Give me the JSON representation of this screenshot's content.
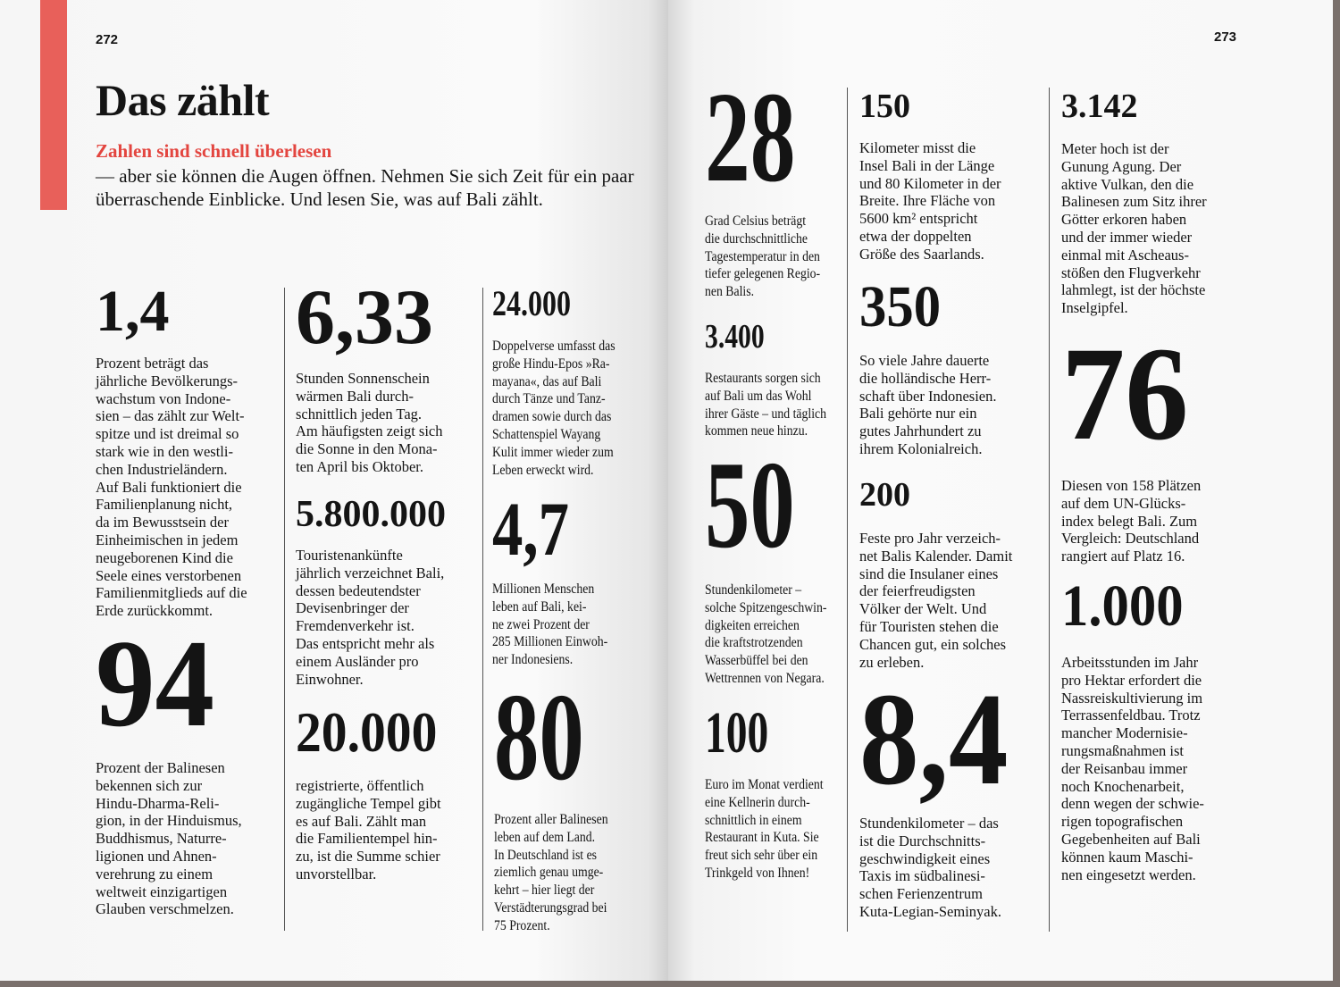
{
  "left_page": {
    "page_number": "272",
    "title": "Das zählt",
    "intro_highlight": "Zahlen sind schnell überlesen",
    "intro_rest": " — aber sie können die Augen öffnen. Nehmen Sie sich Zeit für ein paar überraschende Einblicke. Und lesen Sie, was auf Bali zählt.",
    "blocks": [
      {
        "number": "1,4",
        "text": "Prozent beträgt das\njährliche Bevölkerungs-\nwachstum von Indone-\nsien – das zählt zur Welt-\nspitze und ist dreimal so\nstark wie in den westli-\nchen Industrieländern.\nAuf Bali funktioniert die\nFamilienplanung nicht,\nda im Bewusstsein der\nEinheimischen in jedem\nneugeborenen Kind die\nSeele eines verstorbenen\nFamilienmitglieds auf die\nErde zurückkommt."
      },
      {
        "number": "94",
        "text": "Prozent der Balinesen\nbekennen sich zur\nHindu-Dharma-Reli-\ngion, in der Hinduismus,\nBuddhismus, Naturre-\nligionen und Ahnen-\nverehrung zu einem\nweltweit einzigartigen\nGlauben verschmelzen."
      },
      {
        "number": "6,33",
        "text": "Stunden Sonnenschein\nwärmen Bali durch-\nschnittlich jeden Tag.\nAm häufigsten zeigt sich\ndie Sonne in den Mona-\nten April bis Oktober."
      },
      {
        "number": "5.800.000",
        "text": "Touristenankünfte\njährlich verzeichnet Bali,\ndessen bedeutendster\nDevisenbringer der\nFremdenverkehr ist.\nDas entspricht mehr als\neinem Ausländer pro\nEinwohner."
      },
      {
        "number": "20.000",
        "text": "registrierte, öffentlich\nzugängliche Tempel gibt\nes auf Bali. Zählt man\ndie Familientempel hin-\nzu, ist die Summe schier\nunvorstellbar."
      },
      {
        "number": "24.000",
        "text": "Doppelverse umfasst das\ngroße Hindu-Epos »Ra-\nmayana«, das auf Bali\ndurch Tänze und Tanz-\ndramen sowie durch das\nSchattenspiel Wayang\nKulit immer wieder zum\nLeben erweckt wird."
      },
      {
        "number": "4,7",
        "text": "Millionen Menschen\nleben auf Bali, kei-\nne zwei Prozent der\n285 Millionen Einwoh-\nner Indonesiens."
      },
      {
        "number": "80",
        "text": "Prozent aller Balinesen\nleben auf dem Land.\nIn Deutschland ist es\nziemlich genau umge-\nkehrt – hier liegt der\nVerstädterungsgrad bei\n75 Prozent."
      }
    ]
  },
  "right_page": {
    "page_number": "273",
    "blocks": [
      {
        "number": "28",
        "text": "Grad Celsius beträgt\ndie durchschnittliche\nTagestemperatur in den\ntiefer gelegenen Regio-\nnen Balis."
      },
      {
        "number": "3.400",
        "text": "Restaurants sorgen sich\nauf Bali um das Wohl\nihrer Gäste – und täglich\nkommen neue hinzu."
      },
      {
        "number": "50",
        "text": "Stundenkilometer –\nsolche Spitzengeschwin-\ndigkeiten erreichen\ndie kraftstrotzenden\nWasserbüffel bei den\nWettrennen von Negara."
      },
      {
        "number": "100",
        "text": "Euro im Monat verdient\neine Kellnerin durch-\nschnittlich in einem\nRestaurant in Kuta. Sie\nfreut sich sehr über ein\nTrinkgeld von Ihnen!"
      },
      {
        "number": "150",
        "text": "Kilometer misst die\nInsel Bali in der Länge\nund 80 Kilometer in der\nBreite. Ihre Fläche von\n5600 km² entspricht\netwa der doppelten\nGröße des Saarlands."
      },
      {
        "number": "350",
        "text": "So viele Jahre dauerte\ndie holländische Herr-\nschaft über Indonesien.\nBali gehörte nur ein\ngutes Jahrhundert zu\nihrem Kolonialreich."
      },
      {
        "number": "200",
        "text": "Feste pro Jahr verzeich-\nnet Balis Kalender. Damit\nsind die Insulaner eines\nder feierfreudigsten\nVölker der Welt. Und\nfür Touristen stehen die\nChancen gut, ein solches\nzu erleben."
      },
      {
        "number": "8,4",
        "text": "Stundenkilometer – das\nist die Durchschnitts-\ngeschwindigkeit eines\nTaxis im südbalinesi-\nschen Ferienzentrum\nKuta-Legian-Seminyak."
      },
      {
        "number": "3.142",
        "text": "Meter hoch ist der\nGunung Agung. Der\naktive Vulkan, den die\nBalinesen zum Sitz ihrer\nGötter erkoren haben\nund der immer wieder\neinmal mit Ascheaus-\nstößen den Flugverkehr\nlahmlegt, ist der höchste\nInselgipfel."
      },
      {
        "number": "76",
        "text": "Diesen von 158 Plätzen\nauf dem UN-Glücks-\nindex belegt Bali. Zum\nVergleich: Deutschland\nrangiert auf Platz 16."
      },
      {
        "number": "1.000",
        "text": "Arbeitsstunden im Jahr\npro Hektar erfordert die\nNassreiskultivierung im\nTerrassenfeldbau. Trotz\nmancher Modernisie-\nrungsmaßnahmen ist\nder Reisanbau immer\nnoch Knochenarbeit,\ndenn wegen der schwie-\nrigen topografischen\nGegebenheiten auf Bali\nkönnen kaum Maschi-\nnen eingesetzt werden."
      }
    ]
  },
  "colors": {
    "accent": "#e8605a",
    "text": "#141414",
    "page_edge": "#7a706c"
  }
}
